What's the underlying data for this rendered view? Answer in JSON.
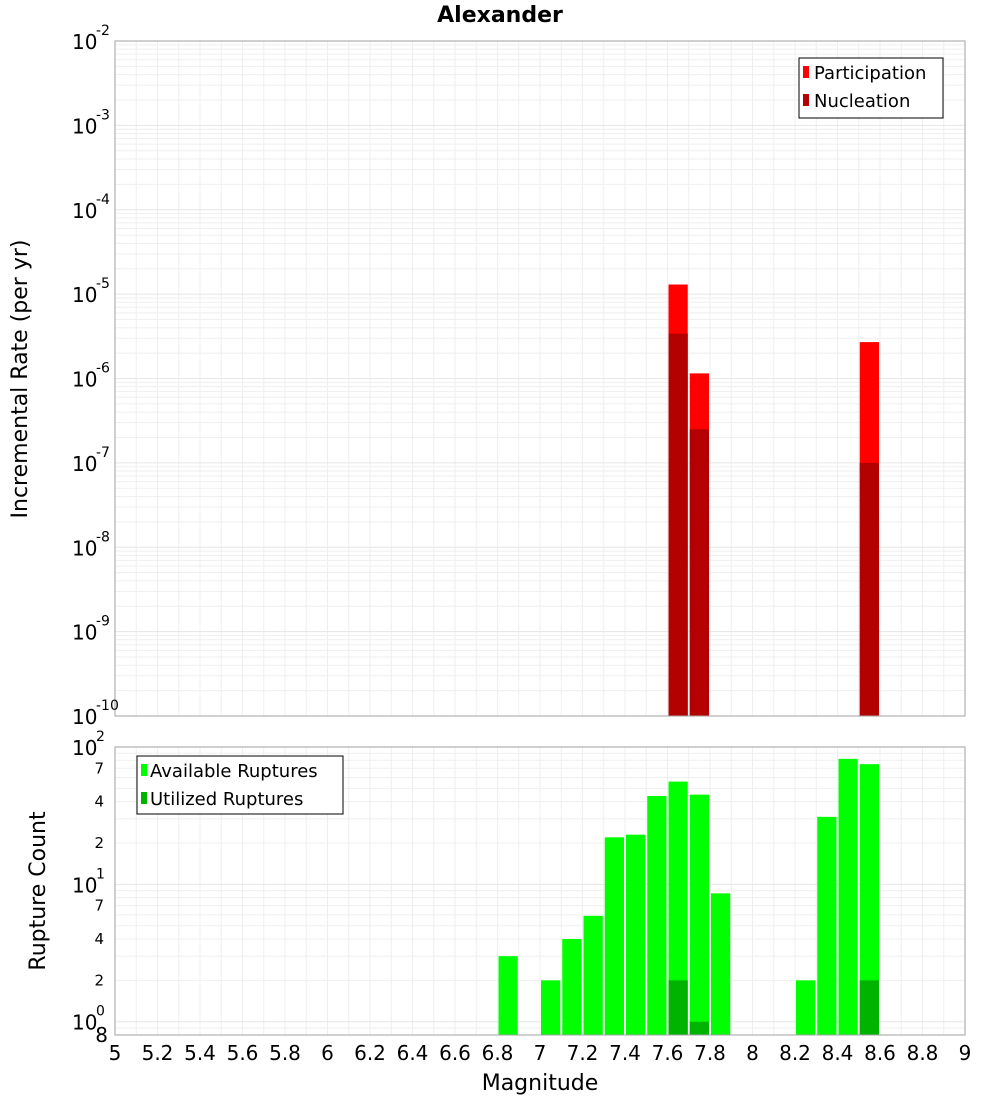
{
  "chart_data": [
    {
      "type": "bar",
      "title": "Alexander",
      "xlabel": "",
      "ylabel": "Incremental Rate (per yr)",
      "xlim": [
        5,
        9
      ],
      "ylim": [
        1e-10,
        0.01
      ],
      "y_scale": "log",
      "grid": true,
      "legend_position": "top-right",
      "y_ticks": [
        {
          "base": "10",
          "exp": "-10",
          "value": 1e-10
        },
        {
          "base": "10",
          "exp": "-9",
          "value": 1e-09
        },
        {
          "base": "10",
          "exp": "-8",
          "value": 1e-08
        },
        {
          "base": "10",
          "exp": "-7",
          "value": 1e-07
        },
        {
          "base": "10",
          "exp": "-6",
          "value": 1e-06
        },
        {
          "base": "10",
          "exp": "-5",
          "value": 1e-05
        },
        {
          "base": "10",
          "exp": "-4",
          "value": 0.0001
        },
        {
          "base": "10",
          "exp": "-3",
          "value": 0.001
        },
        {
          "base": "10",
          "exp": "-2",
          "value": 0.01
        }
      ],
      "series": [
        {
          "name": "Participation",
          "color": "#ff0000",
          "points": [
            {
              "x": 7.65,
              "y": 1.3e-05
            },
            {
              "x": 7.75,
              "y": 1.15e-06
            },
            {
              "x": 8.55,
              "y": 2.7e-06
            }
          ]
        },
        {
          "name": "Nucleation",
          "color": "#b30000",
          "points": [
            {
              "x": 7.65,
              "y": 3.4e-06
            },
            {
              "x": 7.75,
              "y": 2.5e-07
            },
            {
              "x": 8.55,
              "y": 1e-07
            }
          ]
        }
      ]
    },
    {
      "type": "bar",
      "title": "",
      "xlabel": "Magnitude",
      "ylabel": "Rupture Count",
      "xlim": [
        5,
        9
      ],
      "ylim": [
        0.8,
        100
      ],
      "y_scale": "log",
      "grid": true,
      "legend_position": "top-left",
      "x_ticks": [
        "5",
        "5.2",
        "5.4",
        "5.6",
        "5.8",
        "6",
        "6.2",
        "6.4",
        "6.6",
        "6.8",
        "7",
        "7.2",
        "7.4",
        "7.6",
        "7.8",
        "8",
        "8.2",
        "8.4",
        "8.6",
        "8.8",
        "9"
      ],
      "y_major_ticks": [
        {
          "base": "10",
          "exp": "0",
          "value": 1
        },
        {
          "base": "10",
          "exp": "1",
          "value": 10
        },
        {
          "base": "10",
          "exp": "2",
          "value": 100
        }
      ],
      "y_minor_ticks": [
        {
          "label": "2",
          "value": 2
        },
        {
          "label": "4",
          "value": 4
        },
        {
          "label": "7",
          "value": 7
        },
        {
          "label": "2",
          "value": 20
        },
        {
          "label": "4",
          "value": 40
        },
        {
          "label": "7",
          "value": 70
        }
      ],
      "y_bottom_label": "8",
      "series": [
        {
          "name": "Available Ruptures",
          "color": "#00ff00",
          "points": [
            {
              "x": 6.85,
              "y": 3
            },
            {
              "x": 7.05,
              "y": 2
            },
            {
              "x": 7.15,
              "y": 4
            },
            {
              "x": 7.25,
              "y": 5.9
            },
            {
              "x": 7.35,
              "y": 22
            },
            {
              "x": 7.45,
              "y": 23
            },
            {
              "x": 7.55,
              "y": 44
            },
            {
              "x": 7.65,
              "y": 56
            },
            {
              "x": 7.75,
              "y": 45
            },
            {
              "x": 7.85,
              "y": 8.6
            },
            {
              "x": 8.25,
              "y": 2
            },
            {
              "x": 8.35,
              "y": 31
            },
            {
              "x": 8.45,
              "y": 82
            },
            {
              "x": 8.55,
              "y": 75
            }
          ]
        },
        {
          "name": "Utilized Ruptures",
          "color": "#00b300",
          "points": [
            {
              "x": 7.65,
              "y": 2
            },
            {
              "x": 7.75,
              "y": 1
            },
            {
              "x": 8.55,
              "y": 2
            }
          ]
        }
      ]
    }
  ]
}
